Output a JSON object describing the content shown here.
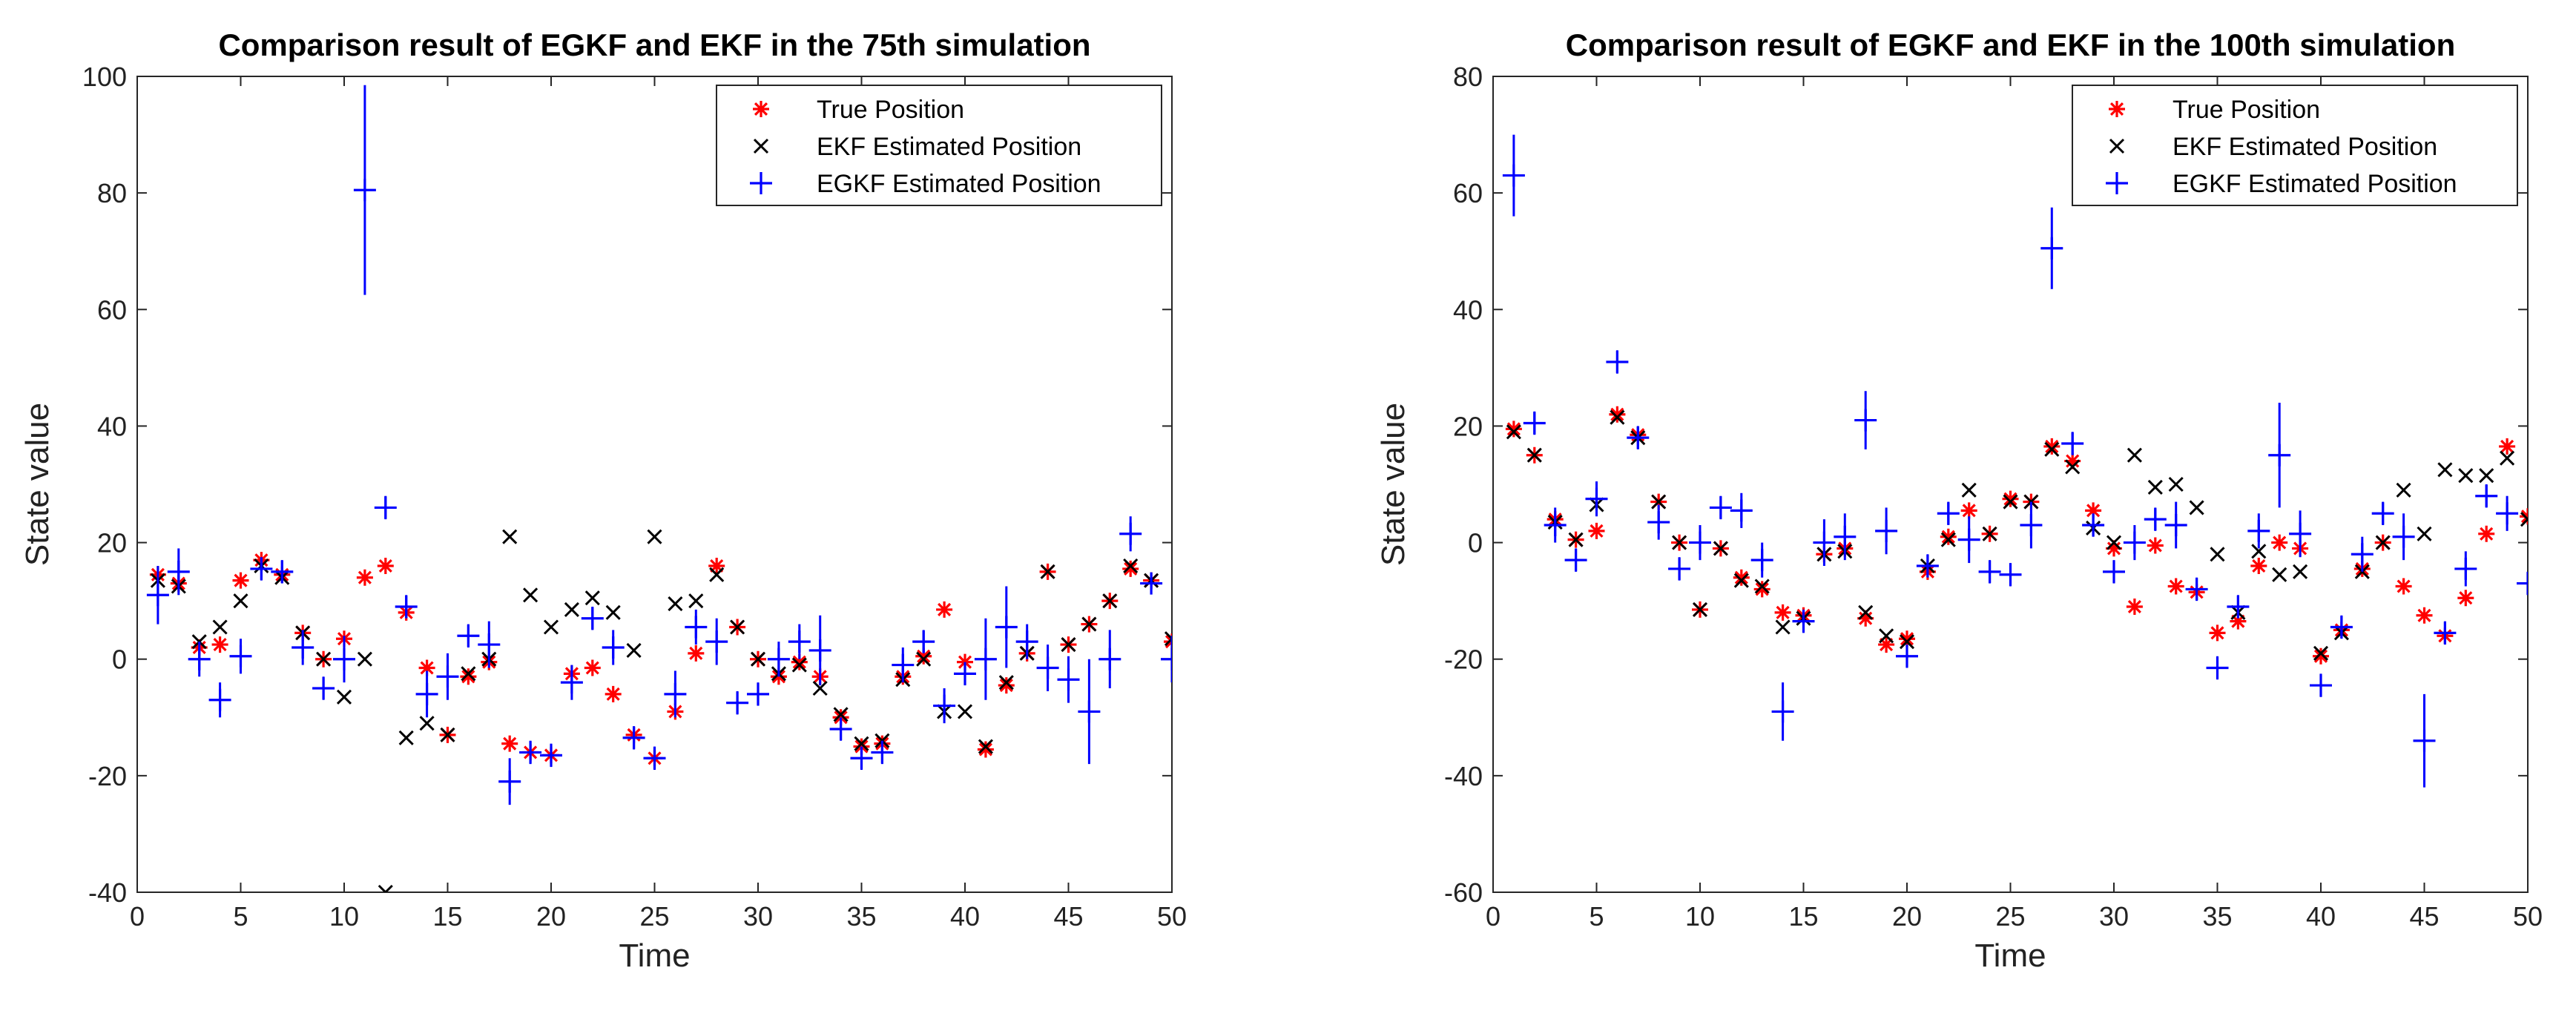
{
  "chart_data": [
    {
      "type": "scatter",
      "title": "Comparison result of EGKF and EKF in the 75th simulation",
      "xlabel": "Time",
      "ylabel": "State value",
      "xlim": [
        0,
        50
      ],
      "ylim": [
        -40,
        100
      ],
      "xticks": [
        0,
        5,
        10,
        15,
        20,
        25,
        30,
        35,
        40,
        45,
        50
      ],
      "yticks": [
        -40,
        -20,
        0,
        20,
        40,
        60,
        80,
        100
      ],
      "legend_position": "top-right",
      "series": [
        {
          "name": "True Position",
          "marker": "asterisk",
          "color": "#ff0000",
          "x": [
            1,
            2,
            3,
            4,
            5,
            6,
            7,
            8,
            9,
            10,
            11,
            12,
            13,
            14,
            15,
            16,
            17,
            18,
            19,
            20,
            21,
            22,
            23,
            24,
            25,
            26,
            27,
            28,
            29,
            30,
            31,
            32,
            33,
            34,
            35,
            36,
            37,
            38,
            39,
            40,
            41,
            42,
            43,
            44,
            45,
            46,
            47,
            48,
            49,
            50
          ],
          "y": [
            14.5,
            13,
            2,
            2.5,
            13.5,
            17,
            14.5,
            4.5,
            0,
            3.5,
            14,
            16,
            8,
            -1.5,
            -13,
            -3,
            -0.5,
            -14.5,
            -16,
            -16.5,
            -2.5,
            -1.5,
            -6,
            -13,
            -17,
            -9,
            1,
            16,
            5.5,
            0,
            -3,
            -0.5,
            -3,
            -10,
            -15,
            -14.5,
            -3,
            0.5,
            8.5,
            -0.5,
            -15.5,
            -4.5,
            1,
            15,
            2.5,
            6,
            10,
            15.5,
            13.5,
            3
          ]
        },
        {
          "name": "EKF Estimated Position",
          "marker": "x",
          "color": "#000000",
          "x": [
            1,
            2,
            3,
            4,
            5,
            6,
            7,
            8,
            9,
            10,
            11,
            12,
            13,
            14,
            15,
            16,
            17,
            18,
            19,
            20,
            21,
            22,
            23,
            24,
            25,
            26,
            27,
            28,
            29,
            30,
            31,
            32,
            33,
            34,
            35,
            36,
            37,
            38,
            39,
            40,
            41,
            42,
            43,
            44,
            45,
            46,
            47,
            48,
            49,
            50
          ],
          "y": [
            13.5,
            12.5,
            3,
            5.5,
            10,
            16,
            14,
            4.5,
            0,
            -6.5,
            0,
            -40,
            -13.5,
            -11,
            -13,
            -2.5,
            0,
            21,
            11,
            5.5,
            8.5,
            10.5,
            8,
            1.5,
            21,
            9.5,
            10,
            14.5,
            5.5,
            0,
            -2.5,
            -1,
            -5,
            -9.5,
            -14.5,
            -14,
            -3.5,
            0,
            -9,
            -9,
            -15,
            -4,
            1,
            15,
            2.5,
            6,
            10,
            16,
            13.5,
            3.5
          ]
        },
        {
          "name": "EGKF Estimated Position",
          "marker": "plus",
          "color": "#0000ff",
          "x": [
            1,
            2,
            3,
            4,
            5,
            6,
            7,
            8,
            9,
            10,
            11,
            12,
            13,
            14,
            15,
            16,
            17,
            18,
            19,
            20,
            21,
            22,
            23,
            24,
            25,
            26,
            27,
            28,
            29,
            30,
            31,
            32,
            33,
            34,
            35,
            36,
            37,
            38,
            39,
            40,
            41,
            42,
            43,
            44,
            45,
            46,
            47,
            48,
            49,
            50
          ],
          "y": [
            11,
            15,
            0,
            -7,
            0.5,
            15.5,
            15,
            2,
            -5,
            0,
            80.5,
            26,
            9,
            -6,
            -3,
            4,
            2.5,
            -21,
            -16,
            -16.5,
            -4,
            7,
            2,
            -13.5,
            -17,
            -6,
            5.5,
            3,
            -7.5,
            -6,
            0,
            3,
            1.5,
            -12,
            -17,
            -16,
            -1,
            3,
            -8,
            -2.5,
            0,
            5.5,
            3,
            -1.5,
            -3.5,
            -9,
            0,
            21.5,
            13,
            0
          ],
          "err": [
            5,
            4,
            3,
            3,
            3,
            2,
            2,
            3,
            2,
            4,
            18,
            2,
            2,
            4,
            4,
            2,
            4,
            4,
            2,
            2,
            3,
            2,
            3,
            2,
            2,
            4,
            3,
            4,
            2,
            2,
            3,
            3,
            6,
            2,
            2,
            2,
            3,
            2,
            3,
            2,
            7,
            7,
            3,
            4,
            4,
            9,
            5,
            3,
            1,
            4
          ]
        }
      ]
    },
    {
      "type": "scatter",
      "title": "Comparison result of EGKF and EKF in the 100th simulation",
      "xlabel": "Time",
      "ylabel": "State value",
      "xlim": [
        0,
        50
      ],
      "ylim": [
        -60,
        80
      ],
      "xticks": [
        0,
        5,
        10,
        15,
        20,
        25,
        30,
        35,
        40,
        45,
        50
      ],
      "yticks": [
        -60,
        -40,
        -20,
        0,
        20,
        40,
        60,
        80
      ],
      "legend_position": "top-right",
      "series": [
        {
          "name": "True Position",
          "marker": "asterisk",
          "color": "#ff0000",
          "x": [
            1,
            2,
            3,
            4,
            5,
            6,
            7,
            8,
            9,
            10,
            11,
            12,
            13,
            14,
            15,
            16,
            17,
            18,
            19,
            20,
            21,
            22,
            23,
            24,
            25,
            26,
            27,
            28,
            29,
            30,
            31,
            32,
            33,
            34,
            35,
            36,
            37,
            38,
            39,
            40,
            41,
            42,
            43,
            44,
            45,
            46,
            47,
            48,
            49,
            50
          ],
          "y": [
            19.5,
            15,
            4,
            0.5,
            2,
            22,
            18.5,
            7,
            0,
            -11.5,
            -1,
            -6,
            -8,
            -12,
            -12.5,
            -2,
            -1,
            -13,
            -17.5,
            -16.5,
            -5,
            1,
            5.5,
            1.5,
            7.5,
            7,
            16.5,
            14,
            5.5,
            -1,
            -11,
            -0.5,
            -7.5,
            -8.5,
            -15.5,
            -13.5,
            -4,
            0,
            -1,
            -19.5,
            -15,
            -4.5,
            0,
            -7.5,
            -12.5,
            -16,
            -9.5,
            1.5,
            16.5,
            4.5
          ]
        },
        {
          "name": "EKF Estimated Position",
          "marker": "x",
          "color": "#000000",
          "x": [
            1,
            2,
            3,
            4,
            5,
            6,
            7,
            8,
            9,
            10,
            11,
            12,
            13,
            14,
            15,
            16,
            17,
            18,
            19,
            20,
            21,
            22,
            23,
            24,
            25,
            26,
            27,
            28,
            29,
            30,
            31,
            32,
            33,
            34,
            35,
            36,
            37,
            38,
            39,
            40,
            41,
            42,
            43,
            44,
            45,
            46,
            47,
            48,
            49,
            50
          ],
          "y": [
            19,
            15,
            3.5,
            0.5,
            6.5,
            21.5,
            18,
            7,
            0,
            -11.5,
            -1,
            -6.5,
            -7.5,
            -14.5,
            -13,
            -2,
            -1.5,
            -12,
            -16,
            -17,
            -4,
            0.5,
            9,
            1.5,
            7,
            7,
            16,
            13,
            2.5,
            0,
            15,
            9.5,
            10,
            6,
            -2,
            -12,
            -1.5,
            -5.5,
            -5,
            -19,
            -15.5,
            -5,
            0,
            9,
            1.5,
            12.5,
            11.5,
            11.5,
            14.5,
            4
          ]
        },
        {
          "name": "EGKF Estimated Position",
          "marker": "plus",
          "color": "#0000ff",
          "x": [
            1,
            2,
            3,
            4,
            5,
            6,
            7,
            8,
            9,
            10,
            11,
            12,
            13,
            14,
            15,
            16,
            17,
            18,
            19,
            20,
            21,
            22,
            23,
            24,
            25,
            26,
            27,
            28,
            29,
            30,
            31,
            32,
            33,
            34,
            35,
            36,
            37,
            38,
            39,
            40,
            41,
            42,
            43,
            44,
            45,
            46,
            47,
            48,
            49,
            50
          ],
          "y": [
            63,
            20.5,
            3,
            -3,
            7.5,
            31,
            18,
            3.5,
            -4.5,
            0,
            6,
            5.5,
            -3,
            -29,
            -13.5,
            0,
            1,
            21,
            2,
            -19.5,
            -4,
            5,
            0.5,
            -5,
            -5.5,
            3,
            50.5,
            17,
            3,
            -5,
            0,
            4,
            3,
            -8,
            -21.5,
            -11,
            2,
            15,
            1.5,
            -24.5,
            -14.5,
            -2,
            5,
            1,
            -34,
            -15.5,
            -4.5,
            8,
            5,
            -7
          ]
        }
      ],
      "err_note": "error bars drawn per point",
      "err": [
        7,
        2,
        3,
        2,
        3,
        2,
        2,
        3,
        2,
        3,
        2,
        3,
        3,
        5,
        2,
        4,
        4,
        5,
        4,
        2,
        2,
        2,
        4,
        2,
        2,
        4,
        7,
        2,
        2,
        2,
        3,
        2,
        4,
        2,
        2,
        2,
        3,
        9,
        4,
        2,
        2,
        3,
        2,
        4,
        8,
        2,
        3,
        2,
        3,
        2
      ]
    }
  ]
}
